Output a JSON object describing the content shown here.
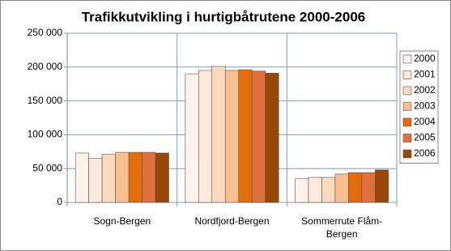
{
  "chart_data": {
    "type": "bar",
    "title": "Trafikkutvikling i hurtigbåtrutene 2000-2006",
    "categories": [
      "Sogn-Bergen",
      "Nordfjord-Bergen",
      "Sommerrute Flåm-Bergen"
    ],
    "series": [
      {
        "name": "2000",
        "color": "#fdf2e9",
        "values": [
          73000,
          190000,
          35000
        ]
      },
      {
        "name": "2001",
        "color": "#fde9d9",
        "values": [
          65000,
          195000,
          37000
        ]
      },
      {
        "name": "2002",
        "color": "#fbd9bd",
        "values": [
          71000,
          201000,
          37000
        ]
      },
      {
        "name": "2003",
        "color": "#f9bf8f",
        "values": [
          74000,
          195000,
          42000
        ]
      },
      {
        "name": "2004",
        "color": "#e46c0a",
        "values": [
          74000,
          196000,
          44000
        ]
      },
      {
        "name": "2005",
        "color": "#e0703c",
        "values": [
          74000,
          194000,
          44000
        ]
      },
      {
        "name": "2006",
        "color": "#974706",
        "values": [
          73000,
          191000,
          48000
        ]
      }
    ],
    "ylim": [
      0,
      250000
    ],
    "yticks": [
      {
        "value": 0,
        "label": "0"
      },
      {
        "value": 50000,
        "label": "50 000"
      },
      {
        "value": 100000,
        "label": "100 000"
      },
      {
        "value": 150000,
        "label": "150 000"
      },
      {
        "value": 200000,
        "label": "200 000"
      },
      {
        "value": 250000,
        "label": "250 000"
      }
    ],
    "grid": true,
    "legend": "right"
  }
}
